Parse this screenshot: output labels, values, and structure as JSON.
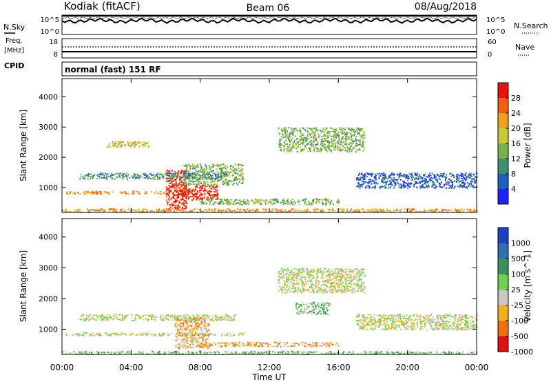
{
  "header": {
    "station": "Kodiak (fitACF)",
    "beam": "Beam 06",
    "date": "08/Aug/2018"
  },
  "noise_panel": {
    "left_label": "N.Sky",
    "left_ticks": [
      "10^5",
      "10^0"
    ],
    "right_label": "N.Search",
    "right_ticks": [
      "10^5",
      "10^0"
    ]
  },
  "freq_panel": {
    "left_label_1": "Freq.",
    "left_label_2": "[MHz]",
    "left_ticks": [
      "18",
      "8"
    ],
    "right_label": "Nave",
    "right_ticks": [
      "60",
      "0"
    ]
  },
  "cpid_panel": {
    "label": "CPID",
    "text": "normal (fast) 151 RF"
  },
  "chart_data": [
    {
      "type": "heatmap",
      "name": "power",
      "ylabel": "Slant Range [km]",
      "xlabel": "",
      "x_ticks": [
        "00:00",
        "04:00",
        "08:00",
        "12:00",
        "16:00",
        "20:00",
        "00:00"
      ],
      "x_range_hours": [
        0,
        24
      ],
      "y_ticks": [
        1000,
        2000,
        3000,
        4000
      ],
      "ylim": [
        180,
        4600
      ],
      "colorbar": {
        "label": "Power [dB]",
        "ticks": [
          "4",
          "8",
          "12",
          "16",
          "20",
          "24",
          "28"
        ],
        "colors": [
          "#2020ff",
          "#1f5fc0",
          "#3f8f6f",
          "#78b050",
          "#c8c838",
          "#f0a020",
          "#f06010",
          "#e81010"
        ]
      },
      "features": [
        {
          "t0": 0.2,
          "t1": 7.5,
          "r0": 800,
          "r1": 900,
          "level": 5
        },
        {
          "t0": 6.8,
          "t1": 9.0,
          "r0": 600,
          "r1": 1100,
          "level": 7
        },
        {
          "t0": 6.0,
          "t1": 7.2,
          "r0": 300,
          "r1": 1600,
          "level": 7
        },
        {
          "t0": 7.0,
          "t1": 10.5,
          "r0": 1100,
          "r1": 1800,
          "level": 3
        },
        {
          "t0": 1.0,
          "t1": 9.5,
          "r0": 1300,
          "r1": 1500,
          "level": 2
        },
        {
          "t0": 2.5,
          "t1": 5.0,
          "r0": 2350,
          "r1": 2550,
          "level": 4
        },
        {
          "t0": 12.5,
          "t1": 17.5,
          "r0": 2200,
          "r1": 3000,
          "level": 3
        },
        {
          "t0": 17.0,
          "t1": 24.0,
          "r0": 1000,
          "r1": 1500,
          "level": 1
        },
        {
          "t0": 0.0,
          "t1": 24.0,
          "r0": 200,
          "r1": 320,
          "level": 5
        },
        {
          "t0": 8.0,
          "t1": 16.0,
          "r0": 450,
          "r1": 650,
          "level": 3
        }
      ]
    },
    {
      "type": "heatmap",
      "name": "velocity",
      "ylabel": "Slant Range [km]",
      "xlabel": "Time UT",
      "x_ticks": [
        "00:00",
        "04:00",
        "08:00",
        "12:00",
        "16:00",
        "20:00",
        "00:00"
      ],
      "x_range_hours": [
        0,
        24
      ],
      "y_ticks": [
        1000,
        2000,
        3000,
        4000
      ],
      "ylim": [
        180,
        4600
      ],
      "colorbar": {
        "label": "Velocity [m s^-1]",
        "ticks": [
          "1000",
          "500",
          "100",
          "25",
          "-25",
          "-100",
          "-500",
          "-1000"
        ],
        "colors": [
          "#1f3fbf",
          "#2f6faf",
          "#3f8f5f",
          "#6fcf4f",
          "#c8c8c0",
          "#f0b020",
          "#f07010",
          "#e01010"
        ]
      },
      "features": [
        {
          "t0": 0.2,
          "t1": 10.5,
          "r0": 800,
          "r1": 900,
          "level": 4
        },
        {
          "t0": 1.0,
          "t1": 10.0,
          "r0": 1300,
          "r1": 1500,
          "level": 4
        },
        {
          "t0": 6.5,
          "t1": 8.5,
          "r0": 400,
          "r1": 1400,
          "level": 5
        },
        {
          "t0": 12.5,
          "t1": 17.5,
          "r0": 2200,
          "r1": 3000,
          "level": 4
        },
        {
          "t0": 17.0,
          "t1": 24.0,
          "r0": 1000,
          "r1": 1500,
          "level": 4
        },
        {
          "t0": 0.0,
          "t1": 24.0,
          "r0": 200,
          "r1": 300,
          "level": 3
        },
        {
          "t0": 13.5,
          "t1": 15.5,
          "r0": 1500,
          "r1": 1900,
          "level": 3
        },
        {
          "t0": 8.0,
          "t1": 16.0,
          "r0": 450,
          "r1": 600,
          "level": 5
        }
      ]
    }
  ]
}
